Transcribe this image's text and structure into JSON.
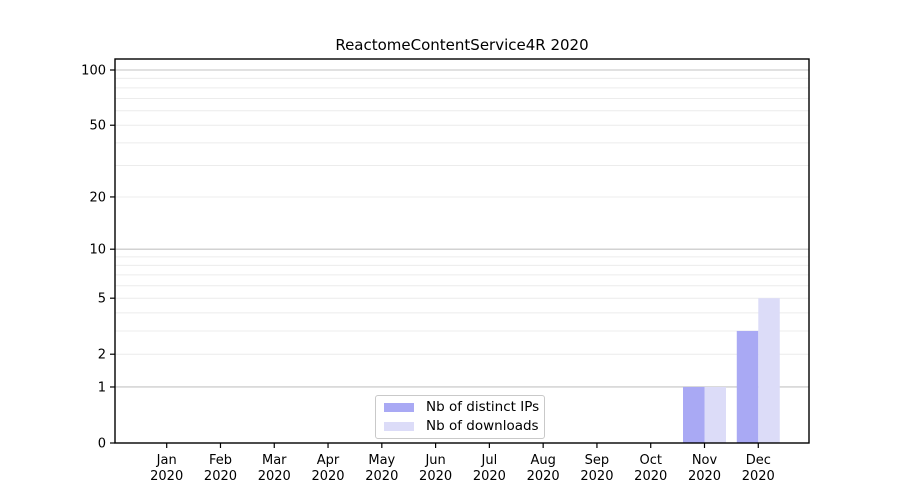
{
  "chart_data": {
    "type": "bar",
    "title": "ReactomeContentService4R 2020",
    "categories": [
      "Jan",
      "Feb",
      "Mar",
      "Apr",
      "May",
      "Jun",
      "Jul",
      "Aug",
      "Sep",
      "Oct",
      "Nov",
      "Dec"
    ],
    "category_year": "2020",
    "series": [
      {
        "name": "Nb of distinct IPs",
        "color": "#a9a9f4",
        "values": [
          0,
          0,
          0,
          0,
          0,
          0,
          0,
          0,
          0,
          0,
          1,
          3
        ]
      },
      {
        "name": "Nb of downloads",
        "color": "#dcdcf8",
        "values": [
          0,
          0,
          0,
          0,
          0,
          0,
          0,
          0,
          0,
          0,
          1,
          5
        ]
      }
    ],
    "xlabel": "",
    "ylabel": "",
    "yscale": "log1p",
    "ylim": [
      0,
      113
    ],
    "yticks": [
      0,
      1,
      2,
      5,
      10,
      20,
      50,
      100
    ],
    "major_gridlines": [
      1,
      10,
      100
    ],
    "minor_gridlines": [
      2,
      3,
      4,
      5,
      6,
      7,
      8,
      9,
      20,
      30,
      40,
      50,
      60,
      70,
      80,
      90
    ],
    "grid": true,
    "legend_position": "bottom-center"
  },
  "colors": {
    "bar_distinct_ips": "#a9a9f4",
    "bar_downloads": "#dcdcf8",
    "major_grid": "#c3c3c3",
    "minor_grid": "#ececec",
    "axis": "#000000",
    "text": "#000000",
    "legend_border": "#c9c9c9",
    "background": "#ffffff"
  }
}
